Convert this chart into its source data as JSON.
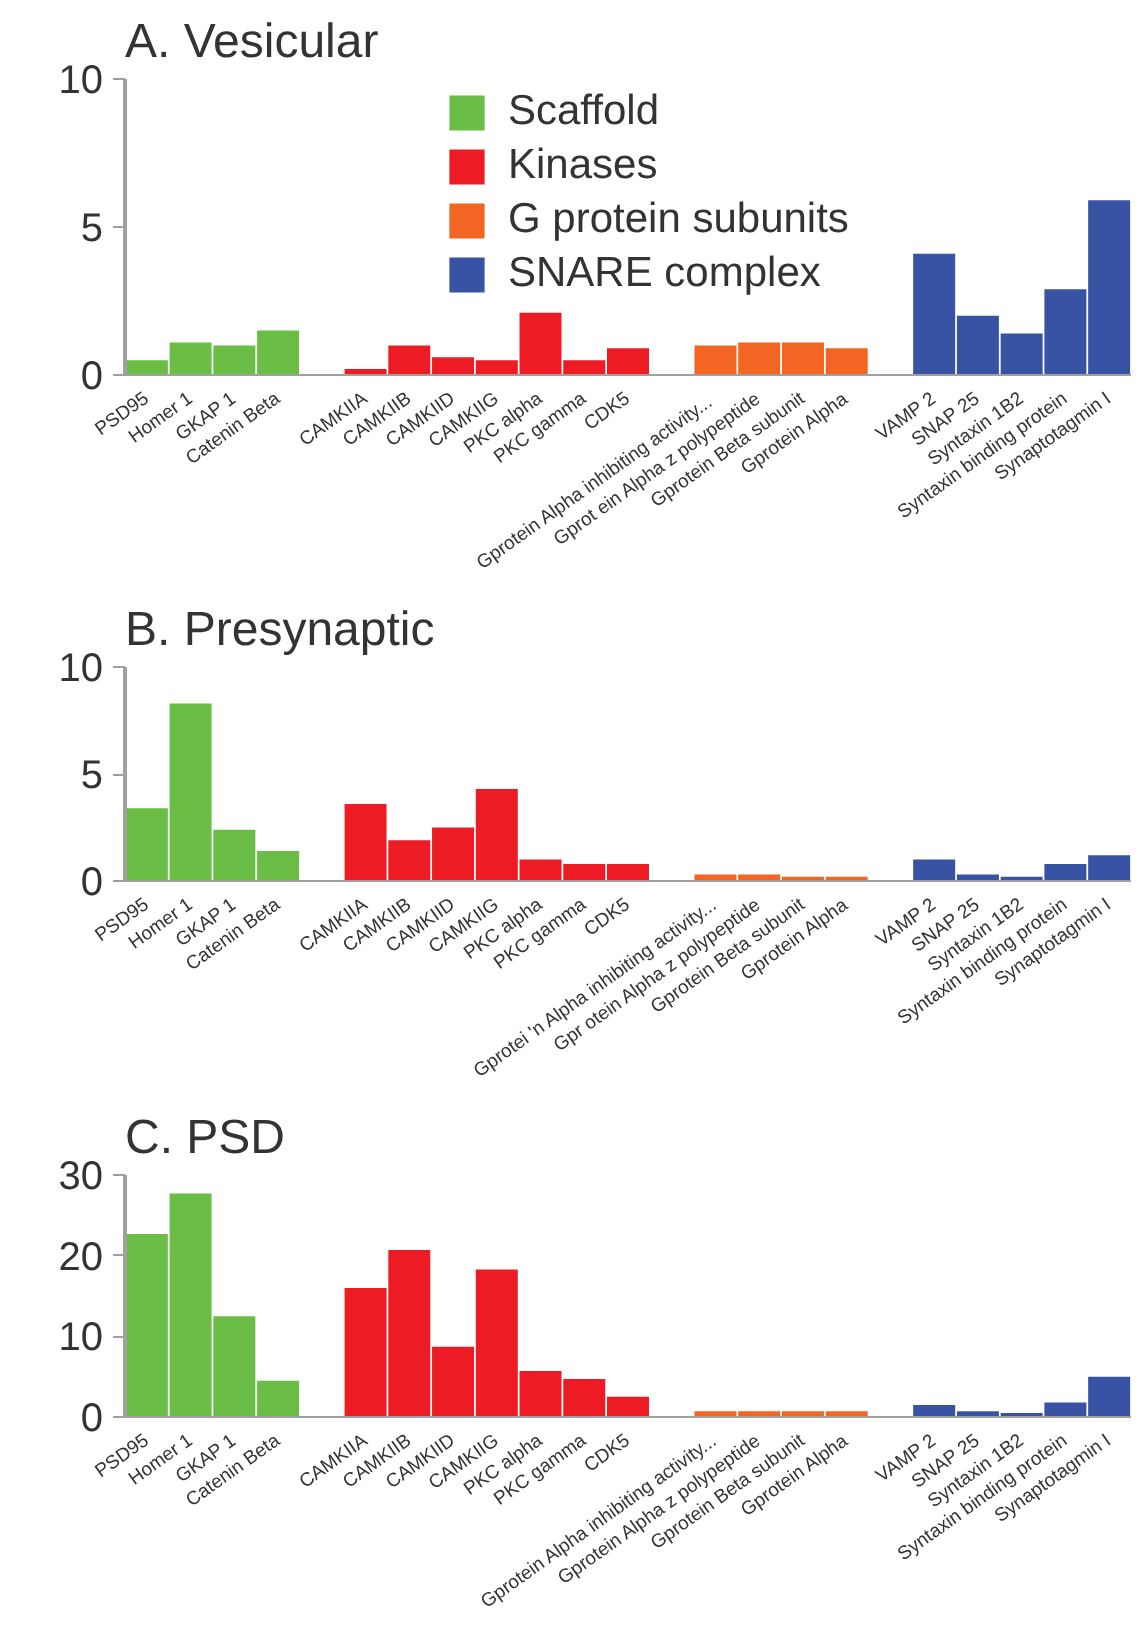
{
  "chart_data": [
    {
      "type": "bar",
      "title": "A. Vesicular",
      "categories": [
        "PSD95",
        "Homer 1",
        "GKAP 1",
        "Catenin Beta",
        null,
        "CAMKIIA",
        "CAMKIIB",
        "CAMKIID",
        "CAMKIIG",
        "PKC alpha",
        "PKC gamma",
        "CDK5",
        null,
        "Gprotein  Alpha inhibiting activity...",
        "Gprot ein Alpha z polypeptide",
        "Gprotein Beta subunit",
        "Gprotein Alpha",
        null,
        "VAMP 2",
        "SNAP 25",
        "Syntaxin 1B2",
        "Syntaxin binding protein",
        "Synaptotagmin I"
      ],
      "ylim": [
        0,
        10
      ],
      "yticks": [
        0,
        5,
        10
      ],
      "legend": "top",
      "series": [
        {
          "name": "Scaffold",
          "color": "#6abd45",
          "values": [
            0.5,
            1.1,
            1.0,
            1.5,
            null,
            null,
            null,
            null,
            null,
            null,
            null,
            null,
            null,
            null,
            null,
            null,
            null,
            null,
            null,
            null,
            null,
            null,
            null
          ]
        },
        {
          "name": "Kinases",
          "color": "#ed1c24",
          "values": [
            null,
            null,
            null,
            null,
            null,
            0.2,
            1.0,
            0.6,
            0.5,
            2.1,
            0.5,
            0.9,
            null,
            null,
            null,
            null,
            null,
            null,
            null,
            null,
            null,
            null,
            null
          ]
        },
        {
          "name": "G protein subunits",
          "color": "#f26522",
          "values": [
            null,
            null,
            null,
            null,
            null,
            null,
            null,
            null,
            null,
            null,
            null,
            null,
            null,
            1.0,
            1.1,
            1.1,
            0.9,
            null,
            null,
            null,
            null,
            null,
            null
          ]
        },
        {
          "name": "SNARE complex",
          "color": "#3953a4",
          "values": [
            null,
            null,
            null,
            null,
            null,
            null,
            null,
            null,
            null,
            null,
            null,
            null,
            null,
            null,
            null,
            null,
            null,
            null,
            4.1,
            2.0,
            1.4,
            2.9,
            5.9
          ]
        }
      ]
    },
    {
      "type": "bar",
      "title": "B. Presynaptic",
      "categories": [
        "PSD95",
        "Homer 1",
        "GKAP 1",
        "Catenin Beta",
        null,
        "CAMKIIA",
        "CAMKIIB",
        "CAMKIID",
        "CAMKIIG",
        "PKC alpha",
        "PKC gamma",
        "CDK5",
        null,
        "Gprotei 'n Alpha inhibiting activity...",
        "Gpr otein Alpha z polypeptide",
        "Gprotein Beta subunit",
        "Gprotein Alpha",
        null,
        "VAMP 2",
        "SNAP 25",
        "Syntaxin 1B2",
        "Syntaxin binding protein",
        "Synaptotagmin I"
      ],
      "ylim": [
        0,
        10
      ],
      "yticks": [
        0,
        5,
        10
      ],
      "series": [
        {
          "color": "#6abd45",
          "values": [
            3.4,
            8.3,
            2.4,
            1.4,
            null,
            null,
            null,
            null,
            null,
            null,
            null,
            null,
            null,
            null,
            null,
            null,
            null,
            null,
            null,
            null,
            null,
            null,
            null
          ]
        },
        {
          "color": "#ed1c24",
          "values": [
            null,
            null,
            null,
            null,
            null,
            3.6,
            1.9,
            2.5,
            4.3,
            1.0,
            0.8,
            0.8,
            null,
            null,
            null,
            null,
            null,
            null,
            null,
            null,
            null,
            null,
            null
          ]
        },
        {
          "color": "#f26522",
          "values": [
            null,
            null,
            null,
            null,
            null,
            null,
            null,
            null,
            null,
            null,
            null,
            null,
            null,
            0.3,
            0.3,
            0.2,
            0.2,
            null,
            null,
            null,
            null,
            null,
            null
          ]
        },
        {
          "color": "#3953a4",
          "values": [
            null,
            null,
            null,
            null,
            null,
            null,
            null,
            null,
            null,
            null,
            null,
            null,
            null,
            null,
            null,
            null,
            null,
            null,
            1.0,
            0.3,
            0.2,
            0.8,
            1.2
          ]
        }
      ]
    },
    {
      "type": "bar",
      "title": "C. PSD",
      "categories": [
        "PSD95",
        "Homer 1",
        "GKAP 1",
        "Catenin Beta",
        null,
        "CAMKIIA",
        "CAMKIIB",
        "CAMKIID",
        "CAMKIIG",
        "PKC alpha",
        "PKC gamma",
        "CDK5",
        null,
        "Gprotein Alpha inhibiting activity...",
        "Gprotein Alpha z polypeptide",
        "Gprotein Beta subunit",
        "Gprotein Alpha",
        null,
        "VAMP 2",
        "SNAP 25",
        "Syntaxin 1B2",
        "Syntaxin binding protein",
        "Synaptotagmin I"
      ],
      "ylim": [
        0,
        30
      ],
      "yticks": [
        0,
        10,
        20,
        30
      ],
      "series": [
        {
          "color": "#6abd45",
          "values": [
            22.7,
            27.7,
            12.5,
            4.5,
            null,
            null,
            null,
            null,
            null,
            null,
            null,
            null,
            null,
            null,
            null,
            null,
            null,
            null,
            null,
            null,
            null,
            null,
            null
          ]
        },
        {
          "color": "#ed1c24",
          "values": [
            null,
            null,
            null,
            null,
            null,
            16,
            20.7,
            8.7,
            18.3,
            5.7,
            4.7,
            2.5,
            null,
            null,
            null,
            null,
            null,
            null,
            null,
            null,
            null,
            null,
            null
          ]
        },
        {
          "color": "#f26522",
          "values": [
            null,
            null,
            null,
            null,
            null,
            null,
            null,
            null,
            null,
            null,
            null,
            null,
            null,
            0.7,
            0.7,
            0.7,
            0.7,
            null,
            null,
            null,
            null,
            null,
            null
          ]
        },
        {
          "color": "#3953a4",
          "values": [
            null,
            null,
            null,
            null,
            null,
            null,
            null,
            null,
            null,
            null,
            null,
            null,
            null,
            null,
            null,
            null,
            null,
            null,
            1.5,
            0.7,
            0.5,
            1.8,
            5.0
          ]
        }
      ]
    }
  ]
}
